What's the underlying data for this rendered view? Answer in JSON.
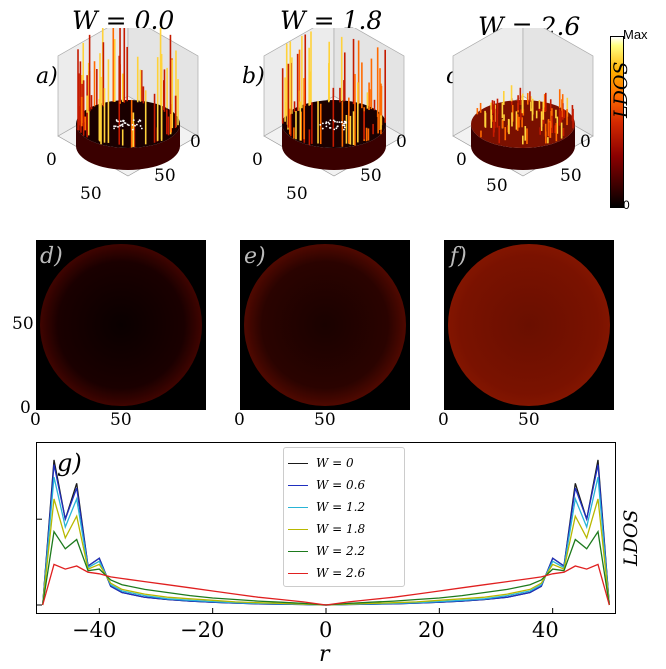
{
  "top_panels": [
    {
      "letter": "a)",
      "title": "W = 0.0",
      "ticks": [
        "0",
        "50",
        "0",
        "50"
      ],
      "intensity": 1.0
    },
    {
      "letter": "b)",
      "title": "W = 1.8",
      "ticks": [
        "0",
        "50",
        "0",
        "50"
      ],
      "intensity": 0.8
    },
    {
      "letter": "c)",
      "title": "W = 2.6",
      "ticks": [
        "0",
        "50",
        "0",
        "50"
      ],
      "intensity": 0.35
    }
  ],
  "colorbar": {
    "label": "LDOS",
    "max_label": "Max",
    "min_label": "0"
  },
  "heatmaps": [
    {
      "letter": "d)",
      "xticks": [
        "0",
        "50"
      ],
      "yticks": [
        "50",
        "0"
      ]
    },
    {
      "letter": "e)",
      "xticks": [
        "0",
        "50"
      ]
    },
    {
      "letter": "f)",
      "xticks": [
        "0",
        "50"
      ]
    }
  ],
  "line_panel": {
    "letter": "g)",
    "ylabel": "LDOS",
    "xlabel": "r",
    "xticks": [
      "−40",
      "−20",
      "0",
      "20",
      "40"
    ]
  },
  "chart_data": {
    "type": "line",
    "x": [
      -50,
      -48,
      -46,
      -44,
      -42,
      -40,
      -38,
      -36,
      -32,
      -28,
      -24,
      -20,
      -16,
      -12,
      -8,
      -4,
      0,
      4,
      8,
      12,
      16,
      20,
      24,
      28,
      32,
      36,
      38,
      40,
      42,
      44,
      46,
      48,
      50
    ],
    "xlim": [
      -51,
      51
    ],
    "ylim": [
      0,
      1.0
    ],
    "series": [
      {
        "name": "W = 0",
        "color": "#1a1a1a",
        "values": [
          0,
          0.93,
          0.55,
          0.78,
          0.25,
          0.3,
          0.12,
          0.08,
          0.05,
          0.035,
          0.025,
          0.018,
          0.012,
          0.008,
          0.005,
          0.003,
          0,
          0.003,
          0.005,
          0.008,
          0.012,
          0.018,
          0.025,
          0.035,
          0.05,
          0.08,
          0.12,
          0.3,
          0.25,
          0.78,
          0.55,
          0.93,
          0
        ]
      },
      {
        "name": "W = 0.6",
        "color": "#1f2fbf",
        "values": [
          0,
          0.9,
          0.55,
          0.75,
          0.25,
          0.3,
          0.12,
          0.08,
          0.05,
          0.035,
          0.025,
          0.018,
          0.012,
          0.008,
          0.005,
          0.003,
          0,
          0.003,
          0.005,
          0.008,
          0.012,
          0.018,
          0.025,
          0.035,
          0.05,
          0.08,
          0.12,
          0.3,
          0.25,
          0.75,
          0.55,
          0.9,
          0
        ]
      },
      {
        "name": "W = 1.2",
        "color": "#29b4d6",
        "values": [
          0,
          0.82,
          0.5,
          0.68,
          0.24,
          0.28,
          0.13,
          0.09,
          0.06,
          0.04,
          0.03,
          0.022,
          0.015,
          0.01,
          0.007,
          0.004,
          0,
          0.004,
          0.007,
          0.01,
          0.015,
          0.022,
          0.03,
          0.04,
          0.06,
          0.09,
          0.13,
          0.28,
          0.24,
          0.68,
          0.5,
          0.82,
          0
        ]
      },
      {
        "name": "W = 1.8",
        "color": "#b8b800",
        "values": [
          0,
          0.68,
          0.43,
          0.57,
          0.23,
          0.26,
          0.14,
          0.1,
          0.07,
          0.05,
          0.04,
          0.03,
          0.02,
          0.015,
          0.01,
          0.006,
          0,
          0.006,
          0.01,
          0.015,
          0.02,
          0.03,
          0.04,
          0.05,
          0.07,
          0.1,
          0.14,
          0.26,
          0.23,
          0.57,
          0.43,
          0.68,
          0
        ]
      },
      {
        "name": "W = 2.2",
        "color": "#1d7a1d",
        "values": [
          0,
          0.47,
          0.36,
          0.42,
          0.22,
          0.23,
          0.16,
          0.13,
          0.1,
          0.08,
          0.06,
          0.045,
          0.035,
          0.025,
          0.018,
          0.01,
          0,
          0.01,
          0.018,
          0.025,
          0.035,
          0.045,
          0.06,
          0.08,
          0.1,
          0.13,
          0.16,
          0.23,
          0.22,
          0.42,
          0.36,
          0.47,
          0
        ]
      },
      {
        "name": "W = 2.6",
        "color": "#e02020",
        "values": [
          0,
          0.26,
          0.23,
          0.25,
          0.21,
          0.2,
          0.18,
          0.17,
          0.15,
          0.13,
          0.11,
          0.09,
          0.07,
          0.05,
          0.035,
          0.02,
          0,
          0.02,
          0.035,
          0.05,
          0.07,
          0.09,
          0.11,
          0.13,
          0.15,
          0.17,
          0.18,
          0.2,
          0.21,
          0.25,
          0.23,
          0.26,
          0
        ]
      }
    ]
  }
}
